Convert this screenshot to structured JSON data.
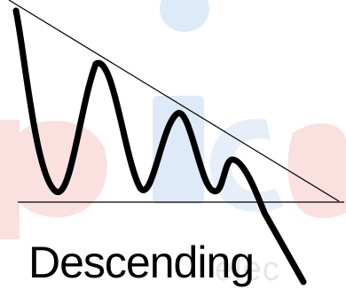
{
  "caption": "Descending",
  "watermark": {
    "text": "elec",
    "colors": {
      "blue": "#dfeaf8",
      "red": "#fbe0e0",
      "gray": "#e6e6e6"
    }
  },
  "colors": {
    "line": "#000000",
    "background": "#ffffff"
  }
}
